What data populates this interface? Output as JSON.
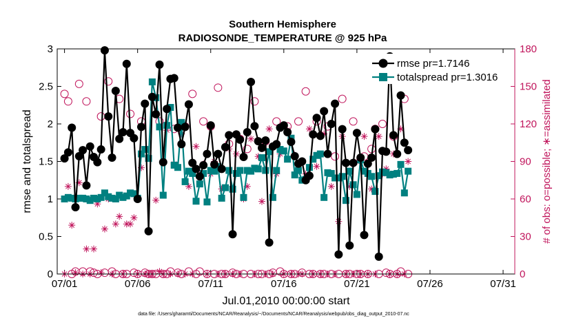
{
  "chart_data": {
    "type": "line",
    "title": "Southern Hemisphere",
    "subtitle": "RADIOSONDE_TEMPERATURE @ 925 hPa",
    "xlabel": "Jul.01,2010 00:00:00 start",
    "ylabel": "rmse and totalspread",
    "ylabel_right": "# of obs: o=possible; ∗=assimilated",
    "footer": "data file: /Users/gharamti/Documents/NCAR/Reanalysis/~/Documents/NCAR/Reanalysis/webpub/obs_diag_output_2010-07.nc",
    "xlim": [
      0.5,
      31.8
    ],
    "ylim": [
      0,
      3
    ],
    "ylim_right": [
      0,
      180
    ],
    "x_ticks": [
      {
        "value": 1,
        "label": "07/01"
      },
      {
        "value": 6,
        "label": "07/06"
      },
      {
        "value": 11,
        "label": "07/11"
      },
      {
        "value": 16,
        "label": "07/16"
      },
      {
        "value": 21,
        "label": "07/21"
      },
      {
        "value": 26,
        "label": "07/26"
      },
      {
        "value": 31,
        "label": "07/31"
      }
    ],
    "y_ticks": [
      "0",
      "0.5",
      "1",
      "1.5",
      "2",
      "2.5",
      "3"
    ],
    "y_ticks_right": [
      "0",
      "30",
      "60",
      "90",
      "120",
      "150",
      "180"
    ],
    "legend": {
      "position": "top-right",
      "entries": [
        "rmse pr=1.7146",
        "totalspread pr=1.3016"
      ]
    },
    "colors": {
      "rmse": "#000000",
      "totalspread": "#008080",
      "obs": "#c0145b"
    },
    "x_start": 1,
    "x_step": 0.25,
    "series": [
      {
        "name": "rmse",
        "axis": "left",
        "values": [
          1.54,
          1.62,
          1.95,
          0.89,
          1.57,
          1.65,
          1.18,
          1.7,
          1.56,
          1.49,
          1.66,
          2.98,
          2.1,
          1.55,
          2.44,
          1.8,
          1.89,
          2.8,
          1.88,
          1.81,
          1.0,
          1.96,
          2.27,
          0.57,
          2.36,
          2.13,
          2.79,
          1.49,
          2.2,
          2.6,
          2.61,
          1.95,
          1.73,
          1.96,
          2.26,
          1.48,
          1.4,
          1.3,
          1.45,
          1.6,
          1.98,
          1.46,
          1.6,
          1.4,
          1.69,
          1.85,
          0.53,
          1.86,
          1.79,
          1.56,
          1.89,
          2.56,
          1.97,
          1.77,
          1.68,
          1.78,
          0.42,
          1.7,
          1.73,
          1.95,
          1.98,
          1.89,
          1.76,
          1.57,
          1.47,
          1.5,
          1.25,
          1.31,
          1.86,
          2.08,
          1.84,
          2.17,
          1.6,
          2.0,
          2.27,
          0.26,
          1.93,
          1.48,
          0.38,
          1.48,
          1.88,
          1.55,
          0.52,
          1.47,
          1.55,
          1.93,
          0.23,
          1.64,
          1.63,
          2.9,
          1.85,
          1.6,
          2.38,
          1.75,
          1.65
        ]
      },
      {
        "name": "totalspread",
        "axis": "left",
        "values": [
          1.0,
          1.02,
          1.01,
          1.0,
          1.01,
          1.01,
          1.0,
          0.98,
          1.01,
          1.0,
          1.02,
          1.08,
          1.03,
          1.01,
          1.0,
          1.05,
          1.02,
          1.04,
          1.08,
          1.07,
          1.01,
          1.6,
          1.66,
          1.54,
          2.56,
          2.35,
          1.96,
          1.05,
          1.98,
          2.22,
          1.45,
          1.42,
          2.02,
          1.23,
          1.37,
          1.34,
          0.97,
          1.2,
          1.34,
          0.96,
          1.38,
          1.37,
          1.43,
          1.01,
          1.15,
          1.38,
          1.13,
          1.34,
          1.38,
          1.02,
          1.38,
          1.37,
          1.41,
          1.4,
          1.55,
          1.38,
          1.63,
          1.02,
          1.38,
          1.66,
          1.64,
          1.53,
          1.81,
          1.32,
          1.38,
          1.25,
          1.26,
          1.42,
          1.53,
          1.58,
          1.6,
          1.02,
          1.35,
          1.34,
          1.28,
          1.28,
          1.3,
          0.98,
          1.37,
          1.19,
          1.06,
          1.52,
          1.37,
          1.34,
          1.3,
          1.1,
          1.31,
          1.36,
          1.35,
          1.32,
          1.33,
          1.34,
          1.46,
          1.08,
          1.37
        ]
      },
      {
        "name": "possible",
        "axis": "right",
        "marker": "circle",
        "values": [
          144,
          138,
          0,
          2,
          152,
          2,
          138,
          2,
          1,
          0,
          126,
          1,
          154,
          2,
          0,
          140,
          0,
          0,
          128,
          1,
          0,
          122,
          1,
          0,
          0,
          0,
          122,
          0,
          0,
          2,
          116,
          1,
          0,
          118,
          2,
          144,
          0,
          2,
          122,
          0,
          118,
          0,
          149,
          0,
          0,
          104,
          1,
          0,
          108,
          0,
          100,
          0,
          138,
          0,
          0,
          106,
          0,
          1,
          122,
          2,
          0,
          118,
          0,
          0,
          122,
          1,
          146,
          0,
          0,
          122,
          0,
          0,
          118,
          0,
          94,
          0,
          140,
          0,
          0,
          122,
          0,
          0,
          94,
          0,
          100,
          116,
          0,
          120,
          1,
          0,
          110,
          0,
          2,
          140,
          0
        ]
      },
      {
        "name": "assimilated",
        "axis": "right",
        "marker": "asterisk",
        "values": [
          0,
          70,
          39,
          1,
          73,
          0,
          20,
          0,
          20,
          56,
          1,
          36,
          60,
          0,
          40,
          46,
          0,
          40,
          40,
          45,
          0,
          85,
          0,
          0,
          0,
          59,
          2,
          0,
          115,
          0,
          88,
          0,
          112,
          0,
          70,
          0,
          102,
          80,
          88,
          0,
          80,
          90,
          0,
          68,
          0,
          100,
          0,
          96,
          0,
          60,
          70,
          108,
          0,
          94,
          58,
          0,
          116,
          0,
          80,
          96,
          0,
          115,
          0,
          95,
          0,
          0,
          80,
          116,
          0,
          86,
          0,
          112,
          0,
          70,
          0,
          42,
          110,
          0,
          70,
          0,
          90,
          0,
          110,
          0,
          68,
          0,
          110,
          80,
          84,
          0,
          96,
          0,
          116,
          0,
          90
        ]
      }
    ]
  }
}
